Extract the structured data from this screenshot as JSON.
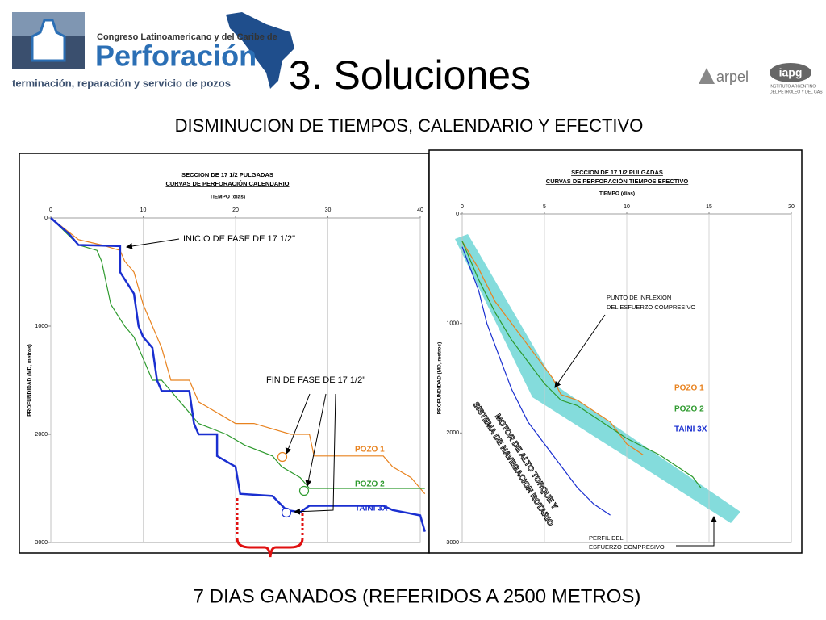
{
  "slide": {
    "logo_line1": "Congreso Latinoamericano y del Caribe de",
    "logo_line2": "Perforación",
    "logo_line3": "terminación, reparación y servicio de pozos",
    "title": "3. Soluciones",
    "arpel": "arpel",
    "iapg": "iapg",
    "iapg_line1": "INSTITUTO ARGENTINO",
    "iapg_line2": "DEL PETROLEO Y DEL GAS",
    "subtitle": "DISMINUCION DE TIEMPOS, CALENDARIO Y EFECTIVO",
    "footer": "7 DIAS GANADOS (REFERIDOS A 2500 METROS)"
  },
  "chart_data": [
    {
      "type": "line",
      "title": "SECCION DE 17 1/2 PULGADAS",
      "subtitle": "CURVAS DE PERFORACIÓN CALENDARIO",
      "x_label": "TIEMPO (dias)",
      "y_label": "PROFUNDIDAD (MD, metros)",
      "xlim": [
        0,
        40
      ],
      "xticks": [
        0,
        10,
        20,
        30,
        40
      ],
      "ylim": [
        0,
        3000
      ],
      "yticks": [
        0,
        1000,
        2000,
        3000
      ],
      "y_reversed": true,
      "grid": "x",
      "annotations": [
        "INICIO DE FASE DE 17 1/2\"",
        "FIN DE FASE DE 17 1/2\""
      ],
      "series": [
        {
          "name": "POZO 1",
          "color": "#e8821e",
          "x": [
            0,
            3,
            5.5,
            7.5,
            8,
            9,
            10,
            12,
            13,
            15,
            16,
            18,
            20,
            22,
            24,
            26,
            28,
            28.5,
            36,
            37,
            39,
            40,
            40.5
          ],
          "values": [
            0,
            200,
            250,
            300,
            400,
            500,
            800,
            1200,
            1500,
            1500,
            1700,
            1800,
            1900,
            1900,
            1950,
            2000,
            2000,
            2200,
            2200,
            2300,
            2400,
            2500,
            2550
          ]
        },
        {
          "name": "POZO 2",
          "color": "#2e9a2e",
          "x": [
            0,
            3,
            5,
            5.5,
            6.5,
            8,
            9,
            10,
            11,
            12,
            14,
            16,
            19,
            21,
            24,
            25,
            27,
            28,
            28.5,
            40.5
          ],
          "values": [
            0,
            250,
            300,
            400,
            800,
            1000,
            1100,
            1300,
            1500,
            1500,
            1700,
            1900,
            2000,
            2100,
            2200,
            2300,
            2400,
            2500,
            2500,
            2500
          ]
        },
        {
          "name": "TAINI 3X",
          "color": "#1a2fd0",
          "x": [
            0,
            2,
            3,
            7.5,
            7.5,
            9,
            9.5,
            10,
            11,
            11.5,
            12,
            15,
            15.5,
            16,
            18,
            18,
            20,
            20.5,
            24,
            25.5,
            27,
            28,
            36,
            37,
            40,
            40.5
          ],
          "values": [
            0,
            150,
            250,
            260,
            500,
            700,
            1000,
            1100,
            1200,
            1500,
            1600,
            1600,
            1900,
            2000,
            2000,
            2200,
            2300,
            2550,
            2570,
            2700,
            2720,
            2660,
            2660,
            2700,
            2750,
            2900
          ]
        }
      ]
    },
    {
      "type": "line",
      "title": "SECCION DE 17 1/2 PULGADAS",
      "subtitle": "CURVAS DE PERFORACIÓN TIEMPOS EFECTIVO",
      "x_label": "TIEMPO (dias)",
      "y_label": "PROFUNDIDAD (MD, metros)",
      "xlim": [
        0,
        20
      ],
      "xticks": [
        0,
        5,
        10,
        15,
        20
      ],
      "ylim": [
        0,
        3000
      ],
      "yticks": [
        0,
        1000,
        2000,
        3000
      ],
      "y_reversed": true,
      "grid": "x",
      "annotations": [
        "PUNTO DE INFLEXION",
        "DEL ESFUERZO COMPRESIVO",
        "PERFIL DEL",
        "ESFUERZO COMPRESIVO",
        "MOTOR DE ALTO TORQUE Y",
        "SISTEMA DE NAVEGACION ROTARIO"
      ],
      "series": [
        {
          "name": "POZO 1",
          "color": "#e8821e",
          "x": [
            0,
            1,
            2,
            3,
            4,
            5,
            5.5,
            6,
            7,
            8,
            9,
            10,
            11
          ],
          "values": [
            250,
            500,
            800,
            1000,
            1200,
            1400,
            1500,
            1650,
            1700,
            1800,
            1900,
            2100,
            2200
          ]
        },
        {
          "name": "POZO 2",
          "color": "#2e9a2e",
          "x": [
            0,
            1,
            2,
            3,
            4,
            5,
            6,
            7,
            8,
            10,
            12,
            14,
            14.5
          ],
          "values": [
            250,
            600,
            900,
            1150,
            1350,
            1550,
            1700,
            1750,
            1850,
            2050,
            2200,
            2400,
            2500
          ]
        },
        {
          "name": "TAINI 3X",
          "color": "#1a2fd0",
          "x": [
            0,
            1,
            1.5,
            2.5,
            3,
            4,
            5,
            6,
            7,
            8,
            9
          ],
          "values": [
            300,
            700,
            1000,
            1400,
            1600,
            1900,
            2100,
            2300,
            2500,
            2650,
            2750
          ]
        }
      ]
    }
  ]
}
